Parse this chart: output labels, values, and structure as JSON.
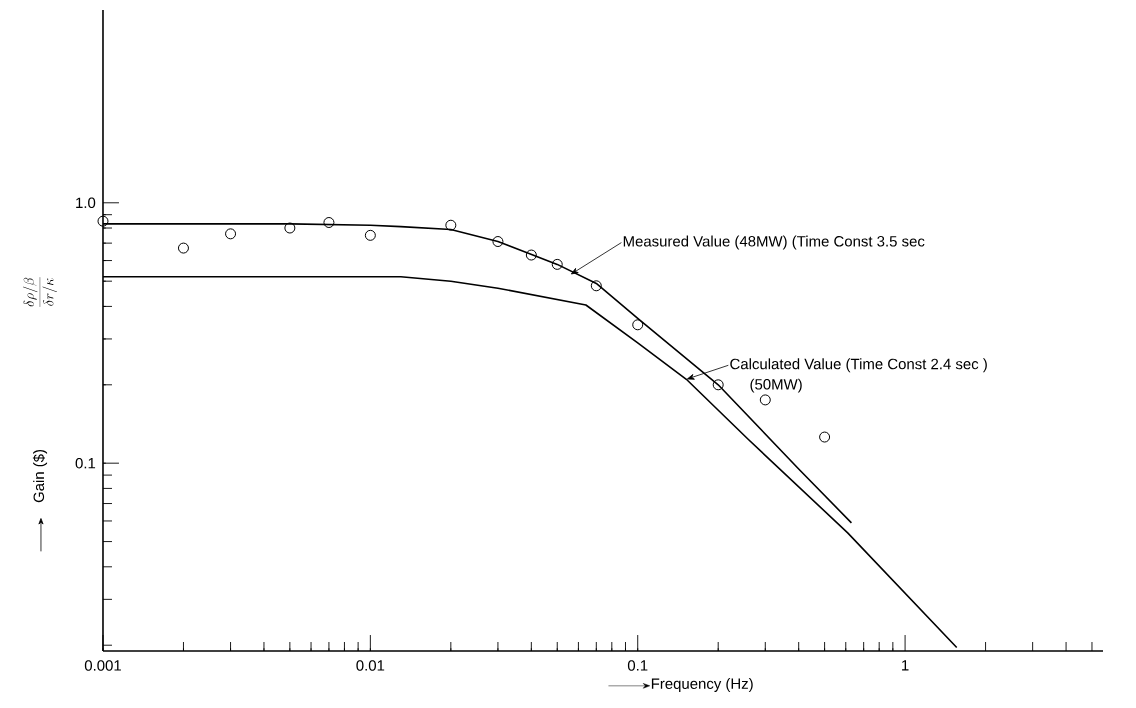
{
  "chart_data": {
    "type": "scatter",
    "xlabel": "Frequency (Hz)",
    "ylabel": "Gain ($)",
    "log": "xy",
    "xlim": [
      0.001,
      5.5
    ],
    "ylim": [
      0.019,
      5.5
    ],
    "xticks": [
      0.001,
      0.01,
      0.1,
      1
    ],
    "yticks": [
      0.1,
      {
        "value": 1,
        "label": "1.0"
      }
    ],
    "series": [
      {
        "color": "#000000",
        "marker": "circle",
        "x": [
          0.001,
          0.002,
          0.003,
          0.005,
          0.007,
          0.01,
          0.02,
          0.03,
          0.04,
          0.05,
          0.07,
          0.1,
          0.2,
          0.3,
          0.5
        ],
        "values": [
          0.85,
          0.67,
          0.76,
          0.8,
          0.84,
          0.75,
          0.82,
          0.71,
          0.63,
          0.58,
          0.48,
          0.34,
          0.2,
          0.175,
          0.126
        ]
      },
      {
        "type": "line",
        "color": "#000000",
        "marker": "none",
        "x": [
          0.001,
          0.005,
          0.01,
          0.013,
          0.02,
          0.03,
          0.05,
          0.07,
          0.1,
          0.2,
          0.4,
          0.63
        ],
        "values": [
          0.83,
          0.83,
          0.82,
          0.81,
          0.79,
          0.71,
          0.58,
          0.49,
          0.36,
          0.2,
          0.095,
          0.059
        ]
      },
      {
        "type": "line",
        "color": "#000000",
        "marker": "none",
        "x": [
          0.001,
          0.01,
          0.013,
          0.02,
          0.03,
          0.064,
          0.1,
          0.152,
          0.26,
          0.61,
          1.56
        ],
        "values": [
          0.52,
          0.52,
          0.52,
          0.5,
          0.47,
          0.405,
          0.29,
          0.21,
          0.123,
          0.054,
          0.0196
        ]
      }
    ],
    "annotations": [
      "\\frac{\\delta\\rho/\\beta}{\\delta r/\\kappa}",
      {
        "text": "Measured Value (48MW) (Time Const 3.5 sec",
        "x": 0.056,
        "y": 0.53
      },
      {
        "text": "Calculated Value (Time Const 2.4 sec )",
        "x": 0.152,
        "y": 0.21
      },
      "(50MW)"
    ]
  }
}
